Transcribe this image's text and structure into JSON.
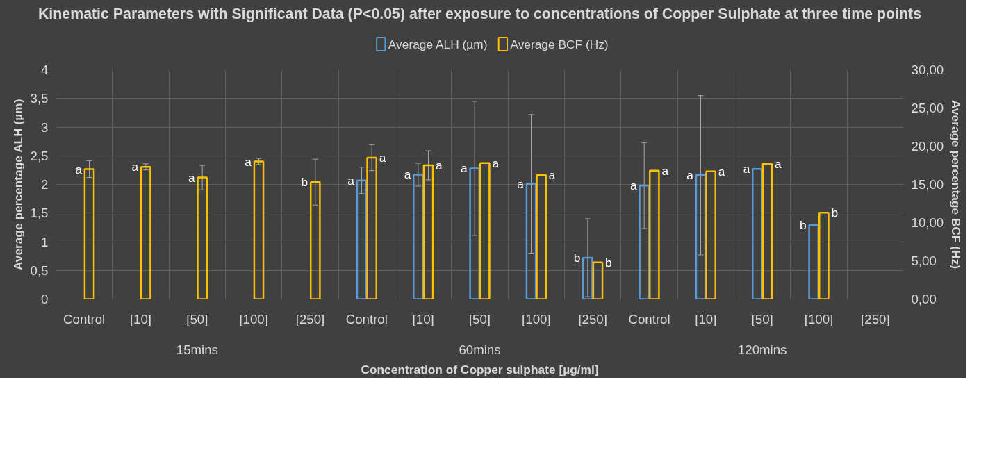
{
  "chart_data": {
    "type": "bar",
    "title": "Kinematic Parameters with Significant Data (P<0.05) after exposure to concentrations of Copper Sulphate at three time points",
    "xlabel": "Concentration of Copper sulphate [µg/ml]",
    "ylabel": "Average percentage ALH (µm)",
    "y2label": "Average percentage BCF (Hz)",
    "categories": [
      "Control",
      "[10]",
      "[50]",
      "[100]",
      "[250]",
      "Control",
      "[10]",
      "[50]",
      "[100]",
      "[250]",
      "Control",
      "[10]",
      "[50]",
      "[100]",
      "[250]"
    ],
    "annotations": [
      "15mins",
      "60mins",
      "120mins"
    ],
    "series": [
      {
        "name": "Average ALH (µm)",
        "color": "#5b9bd5",
        "values": [
          null,
          null,
          null,
          null,
          null,
          2.07,
          2.17,
          2.28,
          2.01,
          0.72,
          1.98,
          2.16,
          2.27,
          1.29,
          null
        ],
        "errors": [
          null,
          null,
          null,
          null,
          null,
          0.23,
          0.2,
          1.17,
          1.21,
          0.68,
          0.75,
          1.39,
          null,
          null,
          null
        ],
        "value_labels": [
          null,
          null,
          null,
          null,
          null,
          "a",
          "a",
          "a",
          "a",
          "b",
          "a",
          "a",
          "a",
          "b",
          null
        ]
      },
      {
        "name": "Average BCF (Hz)",
        "color": "#ffc000",
        "axis": "y2",
        "values": [
          17.0,
          17.3,
          15.9,
          18.0,
          15.3,
          18.5,
          17.5,
          17.8,
          16.2,
          4.8,
          16.8,
          16.7,
          17.7,
          11.3,
          null
        ],
        "errors": [
          1.1,
          0.4,
          1.6,
          0.4,
          3.0,
          1.7,
          1.9,
          null,
          null,
          null,
          null,
          null,
          null,
          null,
          null
        ],
        "value_labels": [
          "a",
          "a",
          "a",
          "a",
          "b",
          "a",
          "a",
          "a",
          "a",
          "b",
          "a",
          "a",
          "a",
          "b",
          null
        ]
      }
    ],
    "ylim": [
      0,
      4
    ],
    "yticks": [
      0,
      {
        "value": 0.5,
        "label": "0,5"
      },
      1,
      {
        "value": 1.5,
        "label": "1,5"
      },
      2,
      {
        "value": 2.5,
        "label": "2,5"
      },
      3,
      {
        "value": 3.5,
        "label": "3,5"
      },
      4
    ],
    "y2lim": [
      0,
      30
    ],
    "y2ticks": [
      {
        "value": 0,
        "label": "0,00"
      },
      {
        "value": 5,
        "label": "5,00"
      },
      {
        "value": 10,
        "label": "10,00"
      },
      {
        "value": 15,
        "label": "15,00"
      },
      {
        "value": 20,
        "label": "20,00"
      },
      {
        "value": 25,
        "label": "25,00"
      },
      {
        "value": 30,
        "label": "30,00"
      }
    ],
    "grid": true,
    "legend": "top"
  }
}
